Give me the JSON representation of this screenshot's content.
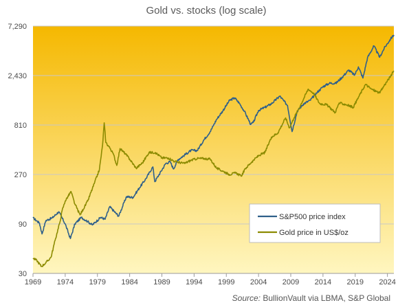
{
  "chart_data": {
    "type": "line",
    "title": "Gold vs. stocks (log scale)",
    "xlabel": "",
    "ylabel": "",
    "y_scale": "log",
    "ylim": [
      30,
      7290
    ],
    "xlim": [
      1969,
      2025
    ],
    "y_ticks": [
      "7,290",
      "2,430",
      "810",
      "270",
      "90",
      "30"
    ],
    "y_tick_values": [
      7290,
      2430,
      810,
      270,
      90,
      30
    ],
    "x_ticks": [
      "1969",
      "1974",
      "1979",
      "1984",
      "1989",
      "1994",
      "1999",
      "2004",
      "2009",
      "2014",
      "2019",
      "2024"
    ],
    "x_tick_values": [
      1969,
      1974,
      1979,
      1984,
      1989,
      1994,
      1999,
      2004,
      2009,
      2014,
      2019,
      2024
    ],
    "grid": "horizontal",
    "legend_position": "bottom-right",
    "background_gradient": [
      "#f5b800",
      "#fff6c0"
    ],
    "series": [
      {
        "name": "S&P500 price index",
        "color": "#2e5f8a",
        "points": [
          [
            1969.0,
            103
          ],
          [
            1970.0,
            92
          ],
          [
            1970.4,
            72
          ],
          [
            1971.0,
            97
          ],
          [
            1972.0,
            103
          ],
          [
            1973.0,
            118
          ],
          [
            1974.0,
            90
          ],
          [
            1974.8,
            65
          ],
          [
            1975.5,
            90
          ],
          [
            1976.5,
            104
          ],
          [
            1977.5,
            95
          ],
          [
            1978.2,
            88
          ],
          [
            1979.5,
            104
          ],
          [
            1980.2,
            100
          ],
          [
            1980.9,
            132
          ],
          [
            1982.3,
            107
          ],
          [
            1983.5,
            165
          ],
          [
            1984.5,
            162
          ],
          [
            1985.5,
            200
          ],
          [
            1986.5,
            245
          ],
          [
            1987.6,
            320
          ],
          [
            1987.9,
            230
          ],
          [
            1988.5,
            265
          ],
          [
            1989.6,
            345
          ],
          [
            1990.3,
            358
          ],
          [
            1990.8,
            305
          ],
          [
            1991.5,
            375
          ],
          [
            1992.5,
            415
          ],
          [
            1993.5,
            460
          ],
          [
            1994.5,
            460
          ],
          [
            1995.5,
            580
          ],
          [
            1996.5,
            700
          ],
          [
            1997.5,
            920
          ],
          [
            1998.5,
            1120
          ],
          [
            1999.5,
            1400
          ],
          [
            2000.3,
            1480
          ],
          [
            2001.0,
            1320
          ],
          [
            2001.8,
            1100
          ],
          [
            2002.8,
            820
          ],
          [
            2003.2,
            860
          ],
          [
            2004.0,
            1120
          ],
          [
            2005.0,
            1200
          ],
          [
            2006.0,
            1300
          ],
          [
            2007.3,
            1540
          ],
          [
            2008.5,
            1250
          ],
          [
            2009.2,
            700
          ],
          [
            2010.0,
            1100
          ],
          [
            2011.0,
            1300
          ],
          [
            2012.0,
            1400
          ],
          [
            2013.0,
            1650
          ],
          [
            2014.0,
            1900
          ],
          [
            2015.0,
            2050
          ],
          [
            2016.0,
            2050
          ],
          [
            2017.0,
            2350
          ],
          [
            2018.0,
            2750
          ],
          [
            2018.9,
            2450
          ],
          [
            2019.5,
            2950
          ],
          [
            2020.2,
            2300
          ],
          [
            2020.9,
            3600
          ],
          [
            2021.9,
            4700
          ],
          [
            2022.8,
            3650
          ],
          [
            2023.5,
            4450
          ],
          [
            2024.5,
            5500
          ],
          [
            2025.0,
            6000
          ]
        ]
      },
      {
        "name": "Gold price in US$/oz",
        "color": "#8b8a00",
        "points": [
          [
            1969.0,
            42
          ],
          [
            1969.6,
            40
          ],
          [
            1970.3,
            35
          ],
          [
            1971.0,
            38
          ],
          [
            1971.8,
            43
          ],
          [
            1972.5,
            65
          ],
          [
            1973.2,
            95
          ],
          [
            1973.5,
            120
          ],
          [
            1974.0,
            150
          ],
          [
            1974.9,
            185
          ],
          [
            1975.5,
            140
          ],
          [
            1976.3,
            110
          ],
          [
            1976.8,
            125
          ],
          [
            1977.5,
            150
          ],
          [
            1978.5,
            220
          ],
          [
            1979.3,
            300
          ],
          [
            1979.8,
            520
          ],
          [
            1980.05,
            850
          ],
          [
            1980.3,
            550
          ],
          [
            1981.0,
            480
          ],
          [
            1981.5,
            420
          ],
          [
            1982.0,
            330
          ],
          [
            1982.5,
            480
          ],
          [
            1983.3,
            430
          ],
          [
            1984.0,
            380
          ],
          [
            1985.0,
            310
          ],
          [
            1986.0,
            350
          ],
          [
            1987.0,
            440
          ],
          [
            1988.0,
            440
          ],
          [
            1989.0,
            390
          ],
          [
            1990.0,
            390
          ],
          [
            1991.0,
            360
          ],
          [
            1992.5,
            345
          ],
          [
            1993.5,
            370
          ],
          [
            1994.5,
            385
          ],
          [
            1995.5,
            385
          ],
          [
            1996.5,
            380
          ],
          [
            1997.5,
            310
          ],
          [
            1998.5,
            290
          ],
          [
            1999.5,
            270
          ],
          [
            2000.5,
            280
          ],
          [
            2001.3,
            260
          ],
          [
            2002.0,
            310
          ],
          [
            2003.0,
            360
          ],
          [
            2004.0,
            410
          ],
          [
            2005.0,
            440
          ],
          [
            2006.0,
            620
          ],
          [
            2007.0,
            680
          ],
          [
            2008.2,
            950
          ],
          [
            2008.8,
            760
          ],
          [
            2009.5,
            950
          ],
          [
            2010.5,
            1250
          ],
          [
            2011.7,
            1800
          ],
          [
            2012.5,
            1650
          ],
          [
            2013.5,
            1300
          ],
          [
            2014.5,
            1280
          ],
          [
            2015.9,
            1070
          ],
          [
            2016.5,
            1320
          ],
          [
            2017.5,
            1280
          ],
          [
            2018.7,
            1200
          ],
          [
            2019.5,
            1500
          ],
          [
            2020.6,
            2000
          ],
          [
            2021.5,
            1800
          ],
          [
            2022.8,
            1650
          ],
          [
            2023.5,
            1950
          ],
          [
            2024.5,
            2400
          ],
          [
            2025.0,
            2700
          ]
        ]
      }
    ]
  },
  "source": {
    "prefix": "Source:",
    "text": "BullionVault via LBMA, S&P Global"
  }
}
